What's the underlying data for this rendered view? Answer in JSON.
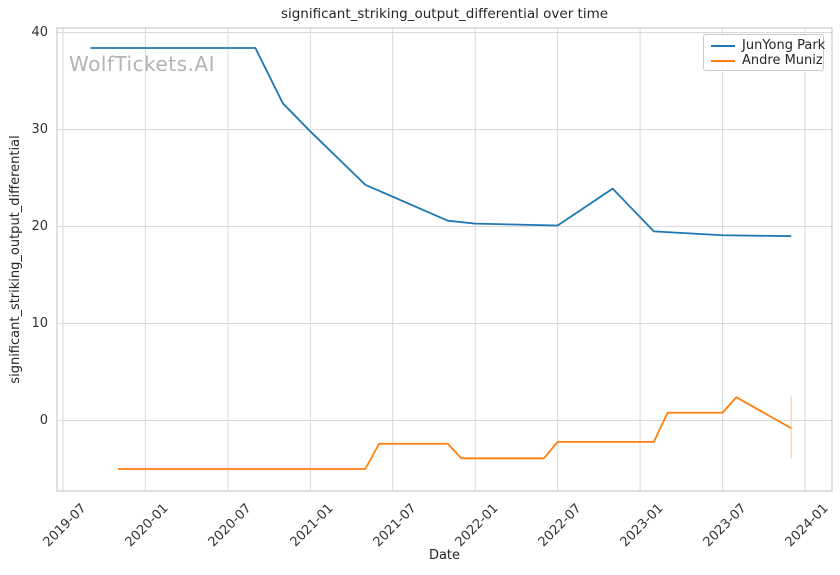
{
  "chart": {
    "title": "significant_striking_output_differential over time",
    "watermark": "WolfTickets.AI"
  },
  "chart_data": {
    "type": "line",
    "title": "significant_striking_output_differential over time",
    "xlabel": "Date",
    "ylabel": "significant_striking_output_differential",
    "x_ticks": [
      "2019-07",
      "2020-01",
      "2020-07",
      "2021-01",
      "2021-07",
      "2022-01",
      "2022-07",
      "2023-01",
      "2023-07",
      "2024-01"
    ],
    "y_ticks": [
      0,
      10,
      20,
      30,
      40
    ],
    "ylim": [
      -7.3,
      40.4
    ],
    "xlim": [
      "2019-06",
      "2024-03"
    ],
    "grid": true,
    "legend_position": "upper right",
    "series": [
      {
        "name": "JunYong Park",
        "color": "#1f77b4",
        "points": [
          [
            "2019-09",
            38.4
          ],
          [
            "2020-09",
            38.4
          ],
          [
            "2020-11",
            32.7
          ],
          [
            "2021-01",
            29.8
          ],
          [
            "2021-05",
            24.3
          ],
          [
            "2021-11",
            20.6
          ],
          [
            "2022-01",
            20.3
          ],
          [
            "2022-07",
            20.1
          ],
          [
            "2022-11",
            23.9
          ],
          [
            "2023-02",
            19.5
          ],
          [
            "2023-07",
            19.1
          ],
          [
            "2023-12",
            19.0
          ]
        ]
      },
      {
        "name": "Andre Muniz",
        "color": "#ff7f0e",
        "points": [
          [
            "2019-11",
            -5.0
          ],
          [
            "2021-05",
            -5.0
          ],
          [
            "2021-06",
            -2.4
          ],
          [
            "2021-11",
            -2.4
          ],
          [
            "2021-12",
            -3.9
          ],
          [
            "2022-06",
            -3.9
          ],
          [
            "2022-07",
            -2.2
          ],
          [
            "2023-02",
            -2.2
          ],
          [
            "2023-03",
            0.8
          ],
          [
            "2023-07",
            0.8
          ],
          [
            "2023-08",
            2.4
          ],
          [
            "2023-12",
            -0.8
          ]
        ]
      }
    ],
    "annotations": {
      "final_range_bar": {
        "x": "2023-12",
        "y_from": -3.9,
        "y_to": 2.5,
        "color": "#ffd9b3"
      }
    }
  },
  "style_colors": {
    "grid": "#d9d9d9",
    "spine": "#cccccc",
    "tick_text": "#333333",
    "title_text": "#262626"
  }
}
